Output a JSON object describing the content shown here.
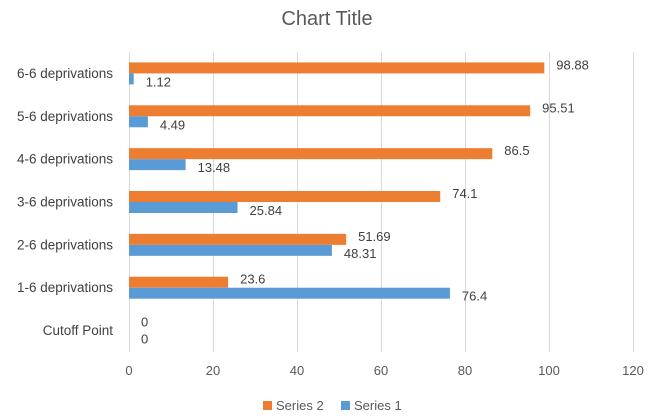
{
  "chart_data": {
    "type": "bar",
    "orientation": "horizontal",
    "title": "Chart Title",
    "categories": [
      "Cutoff Point",
      "1-6 deprivations",
      "2-6 deprivations",
      "3-6 deprivations",
      "4-6 deprivations",
      "5-6 deprivations",
      "6-6 deprivations"
    ],
    "series": [
      {
        "name": "Series 1",
        "color": "#5B9BD5",
        "values": [
          0,
          76.4,
          48.31,
          25.84,
          13.48,
          4.49,
          1.12
        ],
        "labels": [
          "0",
          "76.4",
          "48.31",
          "25.84",
          "13.48",
          "4.49",
          "1.12"
        ]
      },
      {
        "name": "Series 2",
        "color": "#ED7D31",
        "values": [
          0,
          23.6,
          51.69,
          74.1,
          86.5,
          95.51,
          98.88
        ],
        "labels": [
          "0",
          "23.6",
          "51.69",
          "74.1",
          "86.5",
          "95.51",
          "98.88"
        ]
      }
    ],
    "xlim": [
      0,
      120
    ],
    "xticks": [
      0,
      20,
      40,
      60,
      80,
      100,
      120
    ],
    "xtick_labels": [
      "0",
      "20",
      "40",
      "60",
      "80",
      "100",
      "120"
    ],
    "xlabel": "",
    "ylabel": "",
    "grid": true,
    "legend_position": "bottom",
    "legend_order": [
      "Series 2",
      "Series 1"
    ]
  }
}
